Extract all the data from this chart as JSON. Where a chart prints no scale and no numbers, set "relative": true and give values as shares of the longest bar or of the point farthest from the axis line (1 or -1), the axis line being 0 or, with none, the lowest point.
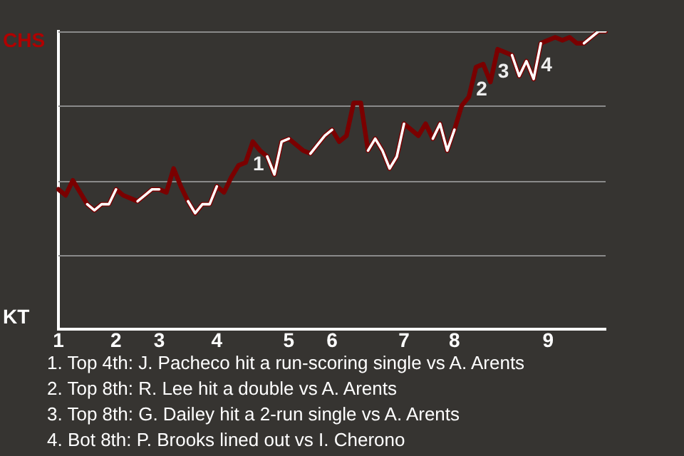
{
  "chart_data": {
    "type": "line",
    "categories": [
      "1",
      null,
      null,
      null,
      null,
      null,
      null,
      null,
      "2",
      null,
      null,
      null,
      null,
      null,
      "3",
      null,
      null,
      null,
      null,
      null,
      null,
      null,
      "4",
      null,
      null,
      null,
      null,
      null,
      null,
      null,
      null,
      null,
      "5",
      null,
      null,
      null,
      null,
      null,
      "6",
      null,
      null,
      null,
      null,
      null,
      null,
      null,
      null,
      null,
      "7",
      null,
      null,
      null,
      null,
      null,
      null,
      "8",
      null,
      null,
      null,
      null,
      null,
      null,
      null,
      null,
      null,
      null,
      null,
      null,
      "9",
      null,
      null,
      null,
      null,
      null,
      null,
      null,
      null
    ],
    "series": [
      {
        "color": "#7a0000",
        "values": [
          0.47,
          0.45,
          0.5,
          0.46,
          0.42,
          0.4,
          0.42,
          0.42,
          0.47,
          0.45,
          0.44,
          0.43,
          0.45,
          0.47,
          0.47,
          0.46,
          0.54,
          0.48,
          0.43,
          0.39,
          0.42,
          0.42,
          0.48,
          0.46,
          0.51,
          0.55,
          0.56,
          0.63,
          0.6,
          0.58,
          0.52,
          0.63,
          0.64,
          0.62,
          0.6,
          0.59,
          0.62,
          0.65,
          0.67,
          0.63,
          0.65,
          0.76,
          0.76,
          0.6,
          0.64,
          0.6,
          0.54,
          0.58,
          0.69,
          0.67,
          0.65,
          0.69,
          0.64,
          0.69,
          0.6,
          0.67,
          0.75,
          0.78,
          0.88,
          0.89,
          0.83,
          0.94,
          0.93,
          0.92,
          0.85,
          0.9,
          0.84,
          0.96,
          0.97,
          0.98,
          0.97,
          0.98,
          0.96,
          0.96,
          0.98,
          1.0,
          1
        ]
      },
      {
        "color": "#ffffff",
        "values": [
          null,
          null,
          null,
          null,
          0.42,
          0.4,
          0.42,
          0.42,
          0.47,
          null,
          null,
          0.43,
          0.45,
          0.47,
          0.47,
          null,
          null,
          null,
          0.43,
          0.39,
          0.42,
          0.42,
          0.48,
          null,
          null,
          null,
          null,
          null,
          null,
          0.58,
          0.52,
          0.63,
          0.64,
          null,
          null,
          0.59,
          0.62,
          0.65,
          0.67,
          null,
          null,
          null,
          null,
          0.6,
          0.64,
          0.6,
          0.54,
          0.58,
          0.69,
          null,
          null,
          null,
          0.64,
          0.69,
          0.6,
          0.67,
          null,
          null,
          null,
          null,
          null,
          null,
          null,
          0.92,
          0.85,
          0.9,
          0.84,
          0.96,
          null,
          null,
          null,
          null,
          null,
          0.96,
          0.98,
          1.0,
          1
        ]
      }
    ],
    "relative": true,
    "grid": "y",
    "legend": false,
    "marker": "none",
    "line_style": "solid",
    "annotations": [
      "CHS",
      "KT",
      {
        "text": "1",
        "y": 0.63
      },
      {
        "text": "2",
        "y": 0.88
      },
      {
        "text": "3",
        "y": 0.94
      },
      {
        "text": "4",
        "y": 0.96
      },
      "1. Top 4th: J. Pacheco hit a run-scoring single vs A. Arents",
      "2. Top 8th: R. Lee hit a double vs A. Arents",
      "3. Top 8th: G. Dailey hit a 2-run single vs A. Arents",
      "4. Bot 8th: P. Brooks lined out vs I. Cherono"
    ]
  }
}
